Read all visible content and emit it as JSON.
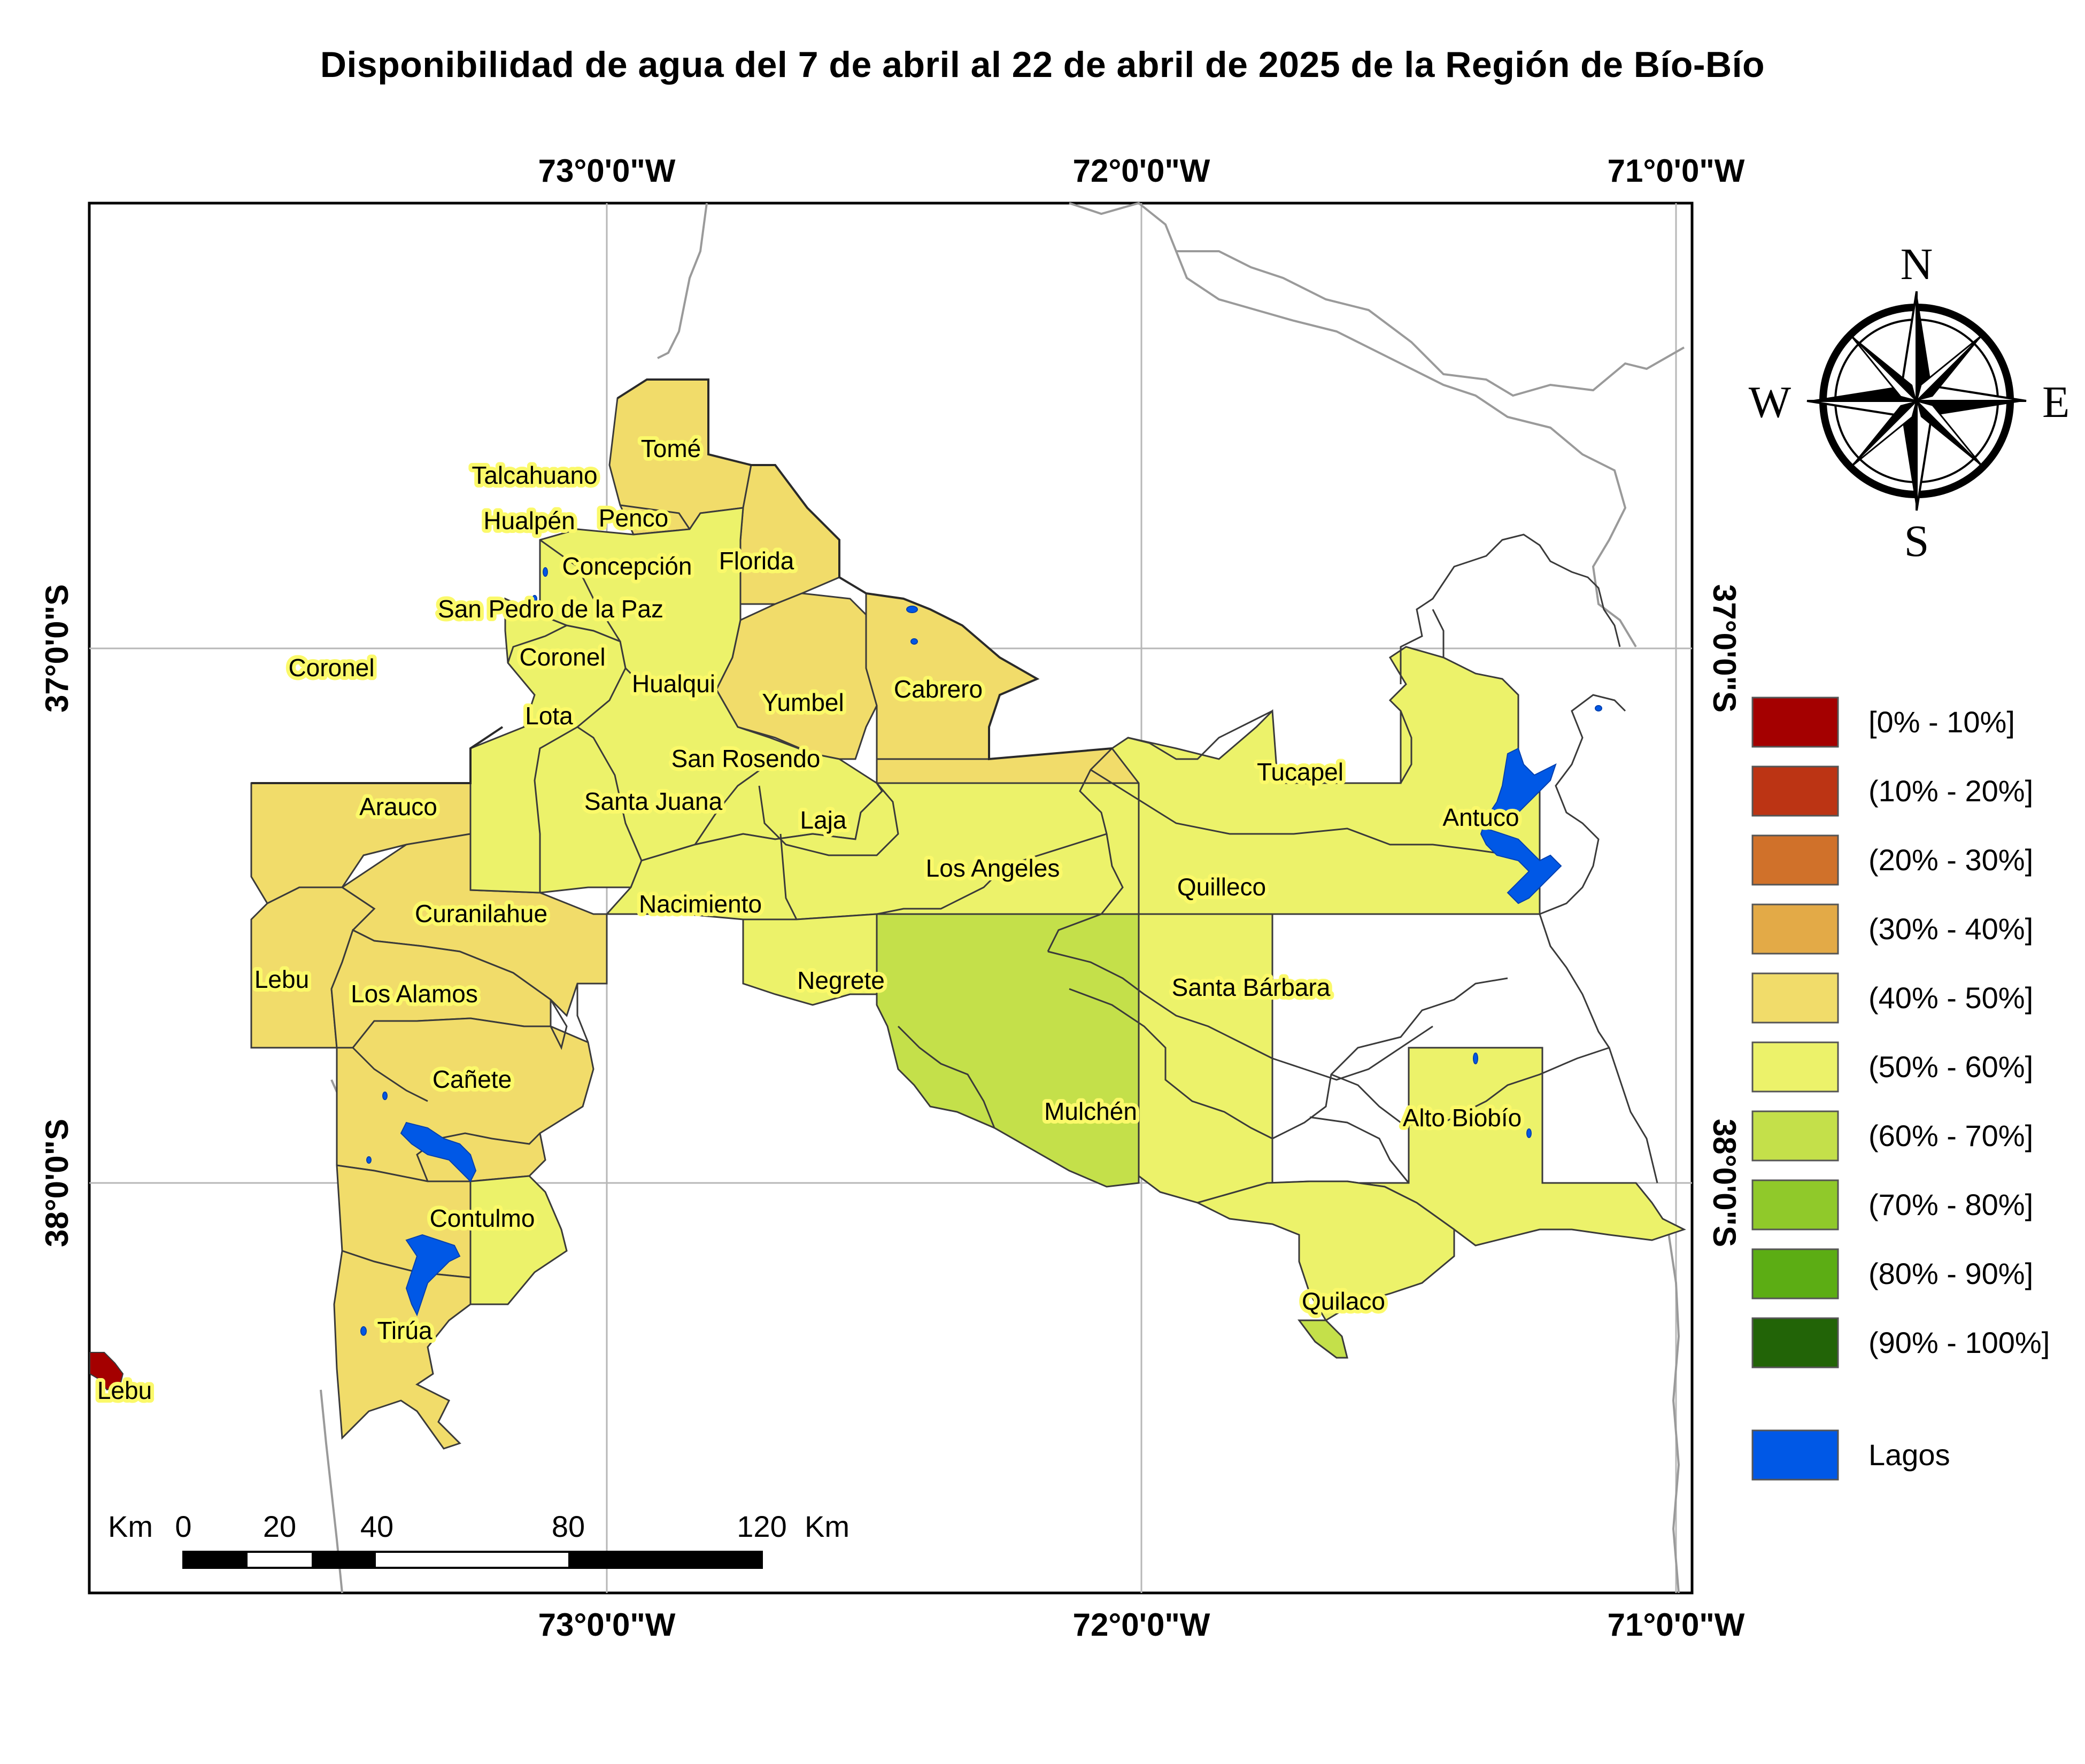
{
  "title": "Disponibilidad de agua del 7 de abril al 22 de abril de 2025 de la Región de Bío-Bío",
  "graticule": {
    "top_labels": [
      "73°0'0\"W",
      "72°0'0\"W",
      "71°0'0\"W"
    ],
    "bottom_labels": [
      "73°0'0\"W",
      "72°0'0\"W",
      "71°0'0\"W"
    ],
    "left_labels": [
      "37°0'0\"S",
      "38°0'0\"S"
    ],
    "right_labels": [
      "37°0'0\"S",
      "38°0'0\"S"
    ]
  },
  "compass": {
    "n": "N",
    "s": "S",
    "e": "E",
    "w": "W"
  },
  "legend": {
    "classes": [
      {
        "label": "[0% - 10%]",
        "color": "#a40000"
      },
      {
        "label": "(10% - 20%]",
        "color": "#bc3414"
      },
      {
        "label": "(20% - 30%]",
        "color": "#d0712a"
      },
      {
        "label": "(30% - 40%]",
        "color": "#e3aa47"
      },
      {
        "label": "(40% - 50%]",
        "color": "#f1dc6a"
      },
      {
        "label": "(50% - 60%]",
        "color": "#ecf26a"
      },
      {
        "label": "(60% - 70%]",
        "color": "#c4e04a"
      },
      {
        "label": "(70% - 80%]",
        "color": "#90c92a"
      },
      {
        "label": "(80% - 90%]",
        "color": "#5cad14"
      },
      {
        "label": "(90% - 100%]",
        "color": "#226407"
      }
    ],
    "lakes": {
      "label": "Lagos",
      "color": "#0058e6"
    }
  },
  "scale_bar": {
    "unit_left": "Km",
    "unit_right": "Km",
    "ticks": [
      "0",
      "20",
      "40",
      "80",
      "120"
    ]
  },
  "communes": [
    {
      "name": "Tomé",
      "class": "(40% - 50%]"
    },
    {
      "name": "Talcahuano",
      "class": "(40% - 50%]"
    },
    {
      "name": "Hualpén",
      "class": "(40% - 50%]"
    },
    {
      "name": "Penco",
      "class": "(40% - 50%]"
    },
    {
      "name": "Concepción",
      "class": "(50% - 60%]"
    },
    {
      "name": "Florida",
      "class": "(40% - 50%]"
    },
    {
      "name": "San Pedro de la Paz",
      "class": "(50% - 60%]"
    },
    {
      "name": "Coronel",
      "class": "(50% - 60%]"
    },
    {
      "name": "Coronel",
      "class": "(50% - 60%]"
    },
    {
      "name": "Hualqui",
      "class": "(50% - 60%]"
    },
    {
      "name": "Yumbel",
      "class": "(40% - 50%]"
    },
    {
      "name": "Cabrero",
      "class": "(40% - 50%]"
    },
    {
      "name": "Lota",
      "class": "(50% - 60%]"
    },
    {
      "name": "San Rosendo",
      "class": "(40% - 50%]"
    },
    {
      "name": "Tucapel",
      "class": "(50% - 60%]"
    },
    {
      "name": "Arauco",
      "class": "(40% - 50%]"
    },
    {
      "name": "Santa Juana",
      "class": "(50% - 60%]"
    },
    {
      "name": "Laja",
      "class": "(50% - 60%]"
    },
    {
      "name": "Antuco",
      "class": "(50% - 60%]"
    },
    {
      "name": "Los Angeles",
      "class": "(50% - 60%]"
    },
    {
      "name": "Quilleco",
      "class": "(50% - 60%]"
    },
    {
      "name": "Curanilahue",
      "class": "(40% - 50%]"
    },
    {
      "name": "Nacimiento",
      "class": "(50% - 60%]"
    },
    {
      "name": "Lebu",
      "class": "(40% - 50%]"
    },
    {
      "name": "Los Alamos",
      "class": "(40% - 50%]"
    },
    {
      "name": "Negrete",
      "class": "(50% - 60%]"
    },
    {
      "name": "Santa Bárbara",
      "class": "(50% - 60%]"
    },
    {
      "name": "Cañete",
      "class": "(40% - 50%]"
    },
    {
      "name": "Mulchén",
      "class": "(60% - 70%]"
    },
    {
      "name": "Alto Biobío",
      "class": "(50% - 60%]"
    },
    {
      "name": "Contulmo",
      "class": "(40% - 50%]"
    },
    {
      "name": "Quilaco",
      "class": "(50% - 60%]"
    },
    {
      "name": "Tirúa",
      "class": "(40% - 50%]"
    },
    {
      "name": "Lebu",
      "class": "[0% - 10%]"
    }
  ]
}
